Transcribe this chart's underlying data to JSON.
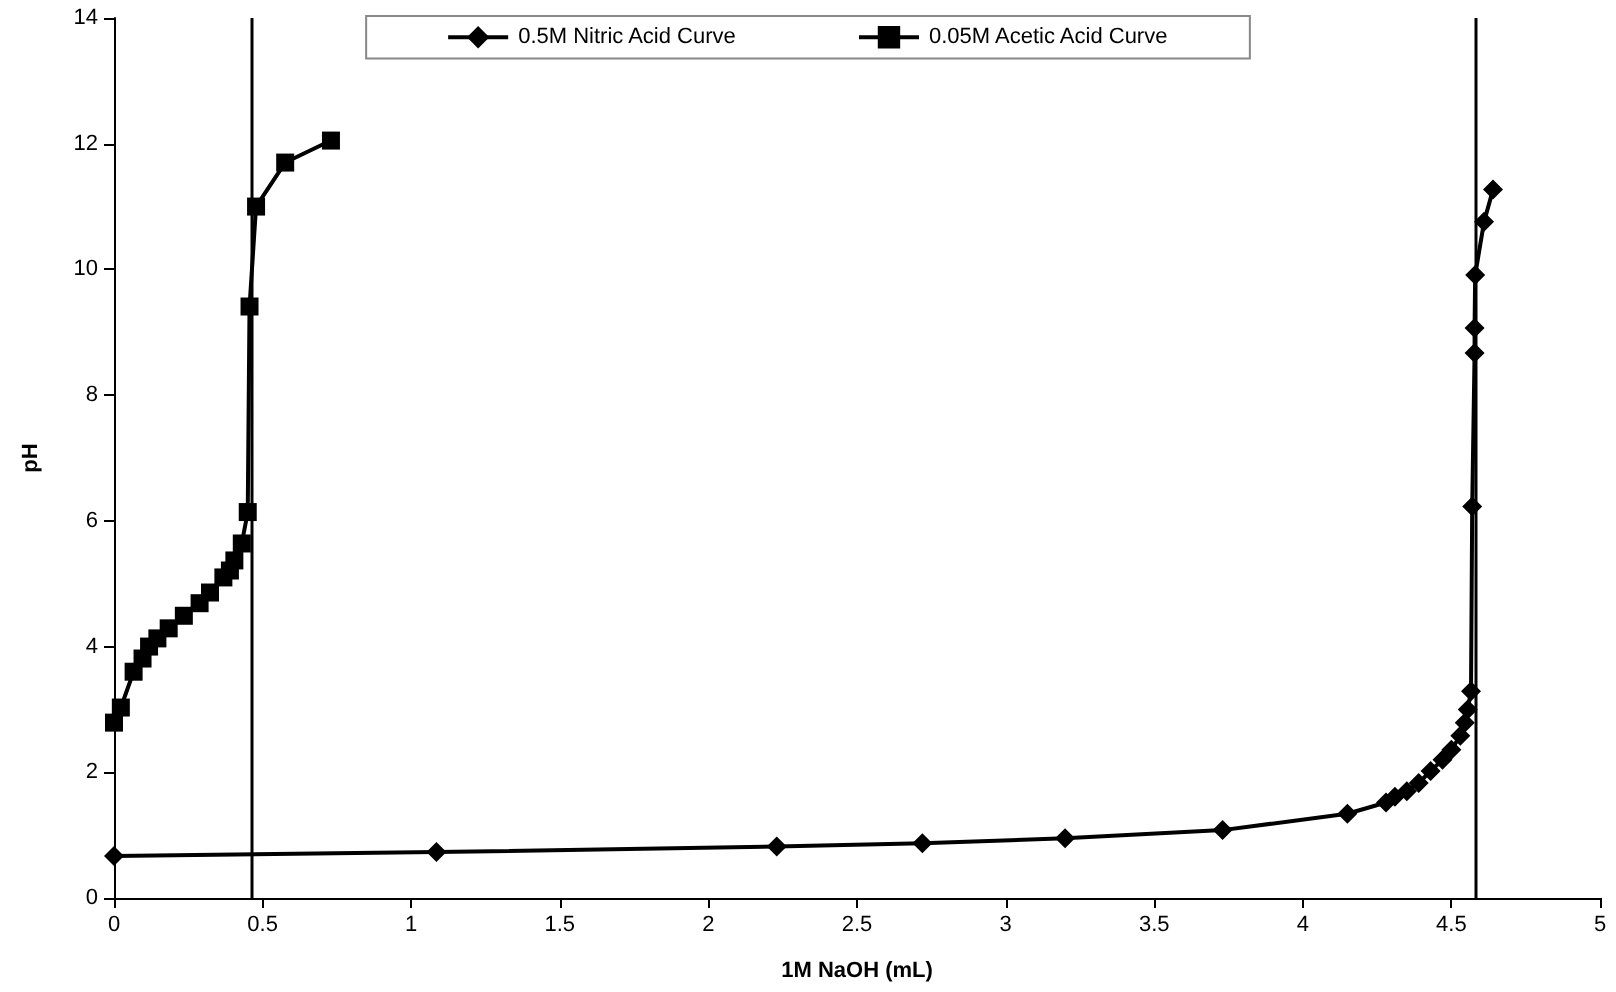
{
  "chart_data": {
    "type": "line",
    "xlabel": "1M NaOH (mL)",
    "ylabel": "pH",
    "xlim": [
      0,
      5
    ],
    "xticks": [
      0,
      0.5,
      1,
      1.5,
      2,
      2.5,
      3,
      3.5,
      4,
      4.5,
      5
    ],
    "ylim": [
      0,
      14
    ],
    "yticks": [
      0,
      2,
      4,
      6,
      8,
      10,
      12,
      14
    ],
    "grid": false,
    "legend": "top",
    "line_style": "solid",
    "series": [
      {
        "name": "0.5M Nitric Acid Curve",
        "color": "#000000",
        "marker": "diamond",
        "x": [
          0,
          1.085,
          2.23,
          2.72,
          3.2,
          3.73,
          4.15,
          4.28,
          4.31,
          4.35,
          4.39,
          4.43,
          4.47,
          4.5,
          4.53,
          4.545,
          4.555,
          4.566,
          4.57,
          4.578,
          4.578,
          4.58,
          4.61,
          4.64
        ],
        "values": [
          0.67,
          0.73,
          0.82,
          0.87,
          0.95,
          1.08,
          1.34,
          1.52,
          1.61,
          1.7,
          1.83,
          2.02,
          2.2,
          2.36,
          2.58,
          2.79,
          3.0,
          3.29,
          6.23,
          8.67,
          9.07,
          9.91,
          10.76,
          11.27
        ]
      },
      {
        "name": "0.05M Acetic Acid Curve",
        "color": "#000000",
        "marker": "square",
        "x": [
          0,
          0.023,
          0.066,
          0.096,
          0.118,
          0.146,
          0.184,
          0.235,
          0.288,
          0.323,
          0.368,
          0.39,
          0.405,
          0.43,
          0.45,
          0.456,
          0.478,
          0.576,
          0.73
        ],
        "values": [
          2.79,
          3.03,
          3.6,
          3.81,
          4.0,
          4.13,
          4.29,
          4.49,
          4.69,
          4.86,
          5.1,
          5.21,
          5.37,
          5.64,
          6.14,
          9.41,
          11.0,
          11.7,
          12.05
        ]
      }
    ],
    "ref_lines": [
      {
        "axis": "x",
        "value": 0.46,
        "color": "#000000"
      },
      {
        "axis": "x",
        "value": 4.575,
        "color": "#000000"
      }
    ]
  }
}
